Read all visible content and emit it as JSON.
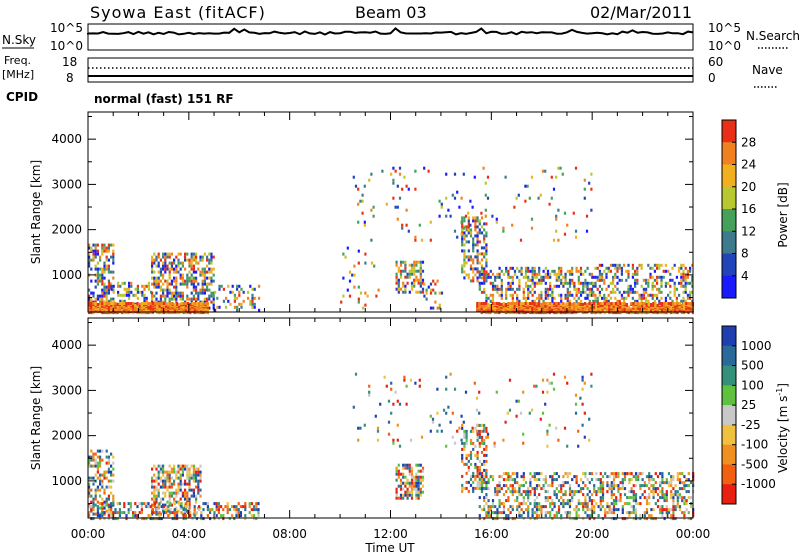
{
  "header": {
    "station": "Syowa East (fitACF)",
    "beam": "Beam 03",
    "date": "02/Mar/2011"
  },
  "strips": {
    "nsky_label": "N.Sky",
    "nsky_ticks": [
      "10^5",
      "10^0"
    ],
    "nsearch_label": "N.Search",
    "nsearch_ticks": [
      "10^5",
      "10^0"
    ],
    "freq_label": "Freq.",
    "freq_unit": "[MHz]",
    "freq_ticks": [
      "18",
      "8"
    ],
    "nave_label": "Nave",
    "nave_ticks": [
      "60",
      "0"
    ],
    "cpid_label": "CPID",
    "cpid_text": "normal (fast) 151 RF"
  },
  "chart_data": [
    {
      "type": "heatmap",
      "panel": "power",
      "ylabel": "Slant Range [km]",
      "xlabel": "Time UT",
      "x_ticks": [
        "00:00",
        "04:00",
        "08:00",
        "12:00",
        "16:00",
        "20:00",
        "00:00"
      ],
      "x_range_hours": [
        0,
        24
      ],
      "y_ticks": [
        1000,
        2000,
        3000,
        4000
      ],
      "ylim": [
        180,
        4600
      ],
      "colorbar_label": "Power [dB]",
      "colorbar_ticks": [
        4,
        8,
        12,
        16,
        20,
        24,
        28
      ],
      "colorbar_range": [
        0,
        32
      ],
      "colors": [
        "#1a1aff",
        "#2244bb",
        "#3d7a8c",
        "#45a05a",
        "#b8c830",
        "#f0b020",
        "#f08020",
        "#e83018"
      ],
      "scatter_regions": [
        {
          "t0": 0.0,
          "t1": 1.0,
          "r0": 300,
          "r1": 1750,
          "density": 0.55
        },
        {
          "t0": 0.8,
          "t1": 2.5,
          "r0": 250,
          "r1": 900,
          "density": 0.35
        },
        {
          "t0": 2.5,
          "t1": 5.0,
          "r0": 300,
          "r1": 1500,
          "density": 0.6
        },
        {
          "t0": 5.0,
          "t1": 6.8,
          "r0": 250,
          "r1": 800,
          "density": 0.3
        },
        {
          "t0": 10.0,
          "t1": 11.5,
          "r0": 300,
          "r1": 1700,
          "density": 0.08
        },
        {
          "t0": 12.2,
          "t1": 13.3,
          "r0": 650,
          "r1": 1350,
          "density": 0.6
        },
        {
          "t0": 13.3,
          "t1": 14.0,
          "r0": 300,
          "r1": 900,
          "density": 0.3
        },
        {
          "t0": 14.8,
          "t1": 15.8,
          "r0": 900,
          "r1": 2300,
          "density": 0.5
        },
        {
          "t0": 15.5,
          "t1": 20.0,
          "r0": 250,
          "r1": 1200,
          "density": 0.45
        },
        {
          "t0": 20.0,
          "t1": 24.0,
          "r0": 250,
          "r1": 1300,
          "density": 0.45
        },
        {
          "t0": 10.5,
          "t1": 20.0,
          "r0": 1800,
          "r1": 3450,
          "density": 0.05
        }
      ],
      "near_band": {
        "t_segments": [
          [
            0.0,
            4.8
          ],
          [
            15.4,
            24.0
          ]
        ],
        "r0": 200,
        "r1": 420,
        "value_range": [
          20,
          30
        ]
      }
    },
    {
      "type": "heatmap",
      "panel": "velocity",
      "ylabel": "Slant Range [km]",
      "xlabel": "Time UT",
      "x_ticks": [
        "00:00",
        "04:00",
        "08:00",
        "12:00",
        "16:00",
        "20:00",
        "00:00"
      ],
      "x_range_hours": [
        0,
        24
      ],
      "y_ticks": [
        1000,
        2000,
        3000,
        4000
      ],
      "ylim": [
        180,
        4600
      ],
      "colorbar_label": "Velocity [m s^-1]",
      "colorbar_ticks": [
        "1000",
        "500",
        "100",
        "25",
        "-25",
        "-100",
        "-500",
        "-1000"
      ],
      "colors": [
        "#1f3fb0",
        "#2a6a9a",
        "#35907a",
        "#60c040",
        "#c8c8c8",
        "#f0c040",
        "#f09020",
        "#f06010",
        "#e82010"
      ],
      "scatter_regions": [
        {
          "t0": 0.0,
          "t1": 1.0,
          "r0": 300,
          "r1": 1750,
          "density": 0.5
        },
        {
          "t0": 2.5,
          "t1": 4.5,
          "r0": 300,
          "r1": 1400,
          "density": 0.55
        },
        {
          "t0": 0.0,
          "t1": 6.8,
          "r0": 200,
          "r1": 550,
          "density": 0.5
        },
        {
          "t0": 12.2,
          "t1": 13.3,
          "r0": 650,
          "r1": 1400,
          "density": 0.6
        },
        {
          "t0": 14.8,
          "t1": 15.8,
          "r0": 800,
          "r1": 2300,
          "density": 0.45
        },
        {
          "t0": 15.5,
          "t1": 24.0,
          "r0": 200,
          "r1": 1200,
          "density": 0.45
        },
        {
          "t0": 10.5,
          "t1": 20.0,
          "r0": 1800,
          "r1": 3450,
          "density": 0.05
        }
      ]
    }
  ],
  "colors": {
    "background": "#ffffff",
    "axis": "#000000"
  }
}
